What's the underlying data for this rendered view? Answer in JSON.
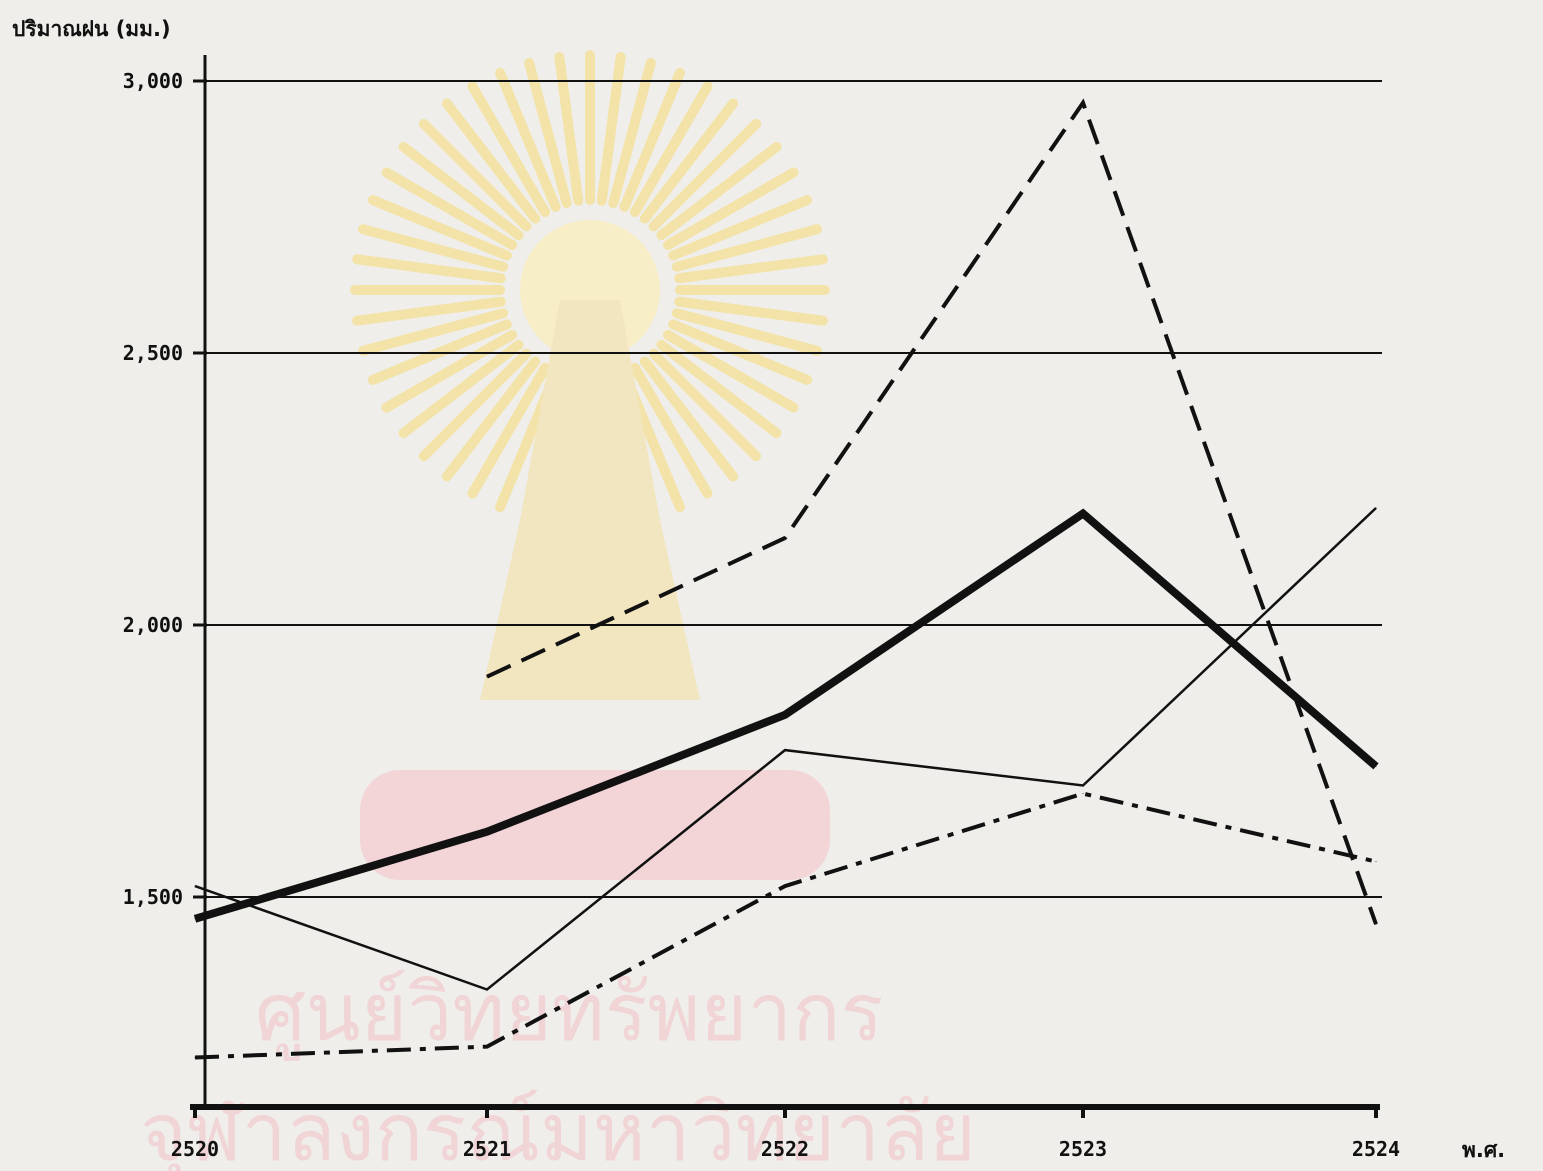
{
  "chart_data": {
    "type": "line",
    "ylabel": "ปริมาณฝน (มม.)",
    "xlabel": "พ.ศ.",
    "x": [
      2520,
      2521,
      2522,
      2523,
      2524
    ],
    "x_tick_labels": [
      "2520",
      "2521",
      "2522",
      "2523",
      "2524"
    ],
    "ylim": [
      1200,
      3050
    ],
    "y_ticks": [
      1500,
      2000,
      2500,
      3000
    ],
    "y_tick_labels": [
      "1,500",
      "2,000",
      "2,500",
      "3,000"
    ],
    "grid": "horizontal at y ticks",
    "legend": "none",
    "series": [
      {
        "style": "thick-solid",
        "color": "#111111",
        "values": [
          1460,
          1620,
          1835,
          2205,
          1740
        ]
      },
      {
        "style": "thin-solid",
        "color": "#111111",
        "values": [
          1520,
          1330,
          1770,
          1705,
          2215
        ]
      },
      {
        "style": "dashed",
        "color": "#111111",
        "values": [
          null,
          1905,
          2160,
          2960,
          1450
        ]
      },
      {
        "style": "dash-dot",
        "color": "#111111",
        "values": [
          1205,
          1225,
          1520,
          1690,
          1565
        ]
      }
    ]
  },
  "watermark": {
    "line1": "ศูนย์วิทยทรัพยากร",
    "line2": "จุฬาลงกรณ์มหาวิทยาลัย",
    "emblem": "university-emblem-icon",
    "emblem_color": "#f3e3a8",
    "text_color": "#efc9cc"
  },
  "colors": {
    "background": "#efeeea",
    "ink": "#111111"
  }
}
